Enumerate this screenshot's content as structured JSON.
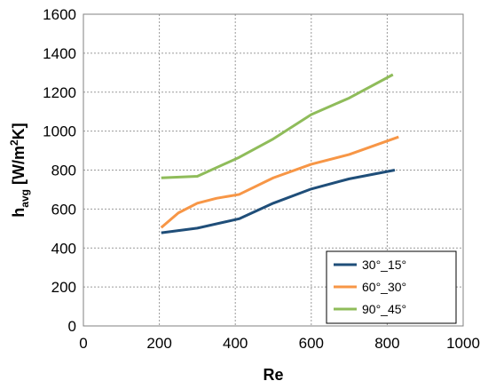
{
  "chart_data": {
    "type": "line",
    "xlabel": "Re",
    "ylabel": {
      "main": "h",
      "sub": "avg",
      "unit_pre": " [W/m",
      "sup": "2",
      "unit_post": "K]"
    },
    "xlim": [
      0,
      1000
    ],
    "ylim": [
      0,
      1600
    ],
    "xticks": [
      0,
      200,
      400,
      600,
      800,
      1000
    ],
    "yticks": [
      0,
      200,
      400,
      600,
      800,
      1000,
      1200,
      1400,
      1600
    ],
    "grid": true,
    "legend_position": "bottom-right",
    "series": [
      {
        "name": "30°_15°",
        "color": "#1f4e79",
        "x": [
          205,
          300,
          410,
          500,
          600,
          700,
          820
        ],
        "y": [
          478,
          502,
          550,
          630,
          703,
          755,
          800
        ]
      },
      {
        "name": "60°_30°",
        "color": "#f79646",
        "x": [
          205,
          250,
          300,
          350,
          410,
          500,
          600,
          700,
          830
        ],
        "y": [
          505,
          580,
          630,
          655,
          675,
          760,
          830,
          880,
          970
        ]
      },
      {
        "name": "90°_45°",
        "color": "#8fbc5a",
        "x": [
          205,
          300,
          410,
          500,
          600,
          700,
          815
        ],
        "y": [
          760,
          768,
          865,
          960,
          1085,
          1170,
          1290
        ]
      }
    ]
  }
}
